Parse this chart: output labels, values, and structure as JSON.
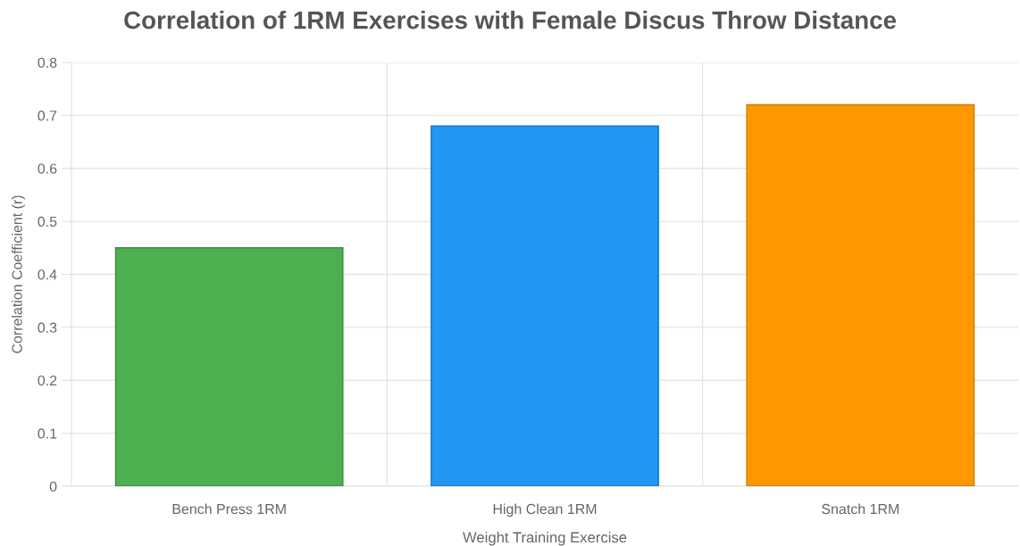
{
  "chart_data": {
    "type": "bar",
    "title": "Correlation of 1RM Exercises with Female Discus Throw Distance",
    "xlabel": "Weight Training Exercise",
    "ylabel": "Correlation Coefficient (r)",
    "categories": [
      "Bench Press 1RM",
      "High Clean 1RM",
      "Snatch 1RM"
    ],
    "values": [
      0.45,
      0.68,
      0.72
    ],
    "colors": [
      "#4caf50",
      "#2196f3",
      "#ff9800"
    ],
    "ylim": [
      0,
      0.8
    ],
    "yticks": [
      {
        "value": 0,
        "label": "0"
      },
      0.1,
      0.2,
      0.3,
      0.4,
      0.5,
      0.6,
      0.7,
      0.8
    ],
    "grid": true
  }
}
